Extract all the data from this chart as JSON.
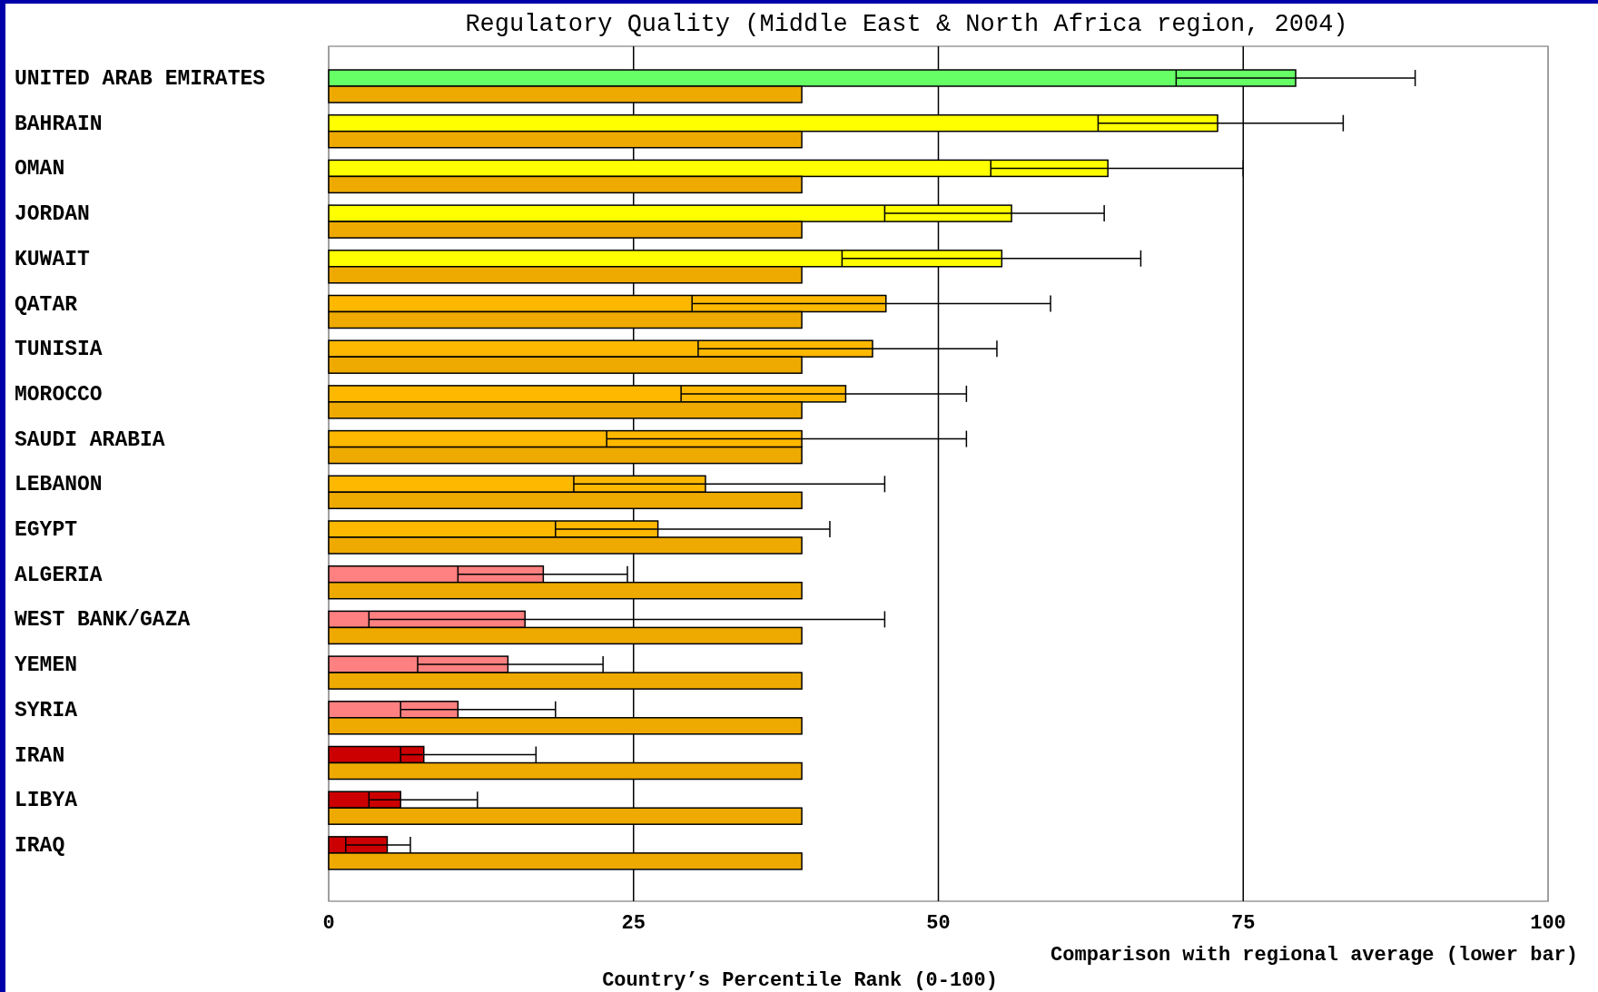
{
  "chart_data": {
    "type": "bar",
    "orientation": "horizontal",
    "title": "Regulatory Quality (Middle East & North Africa region, 2004)",
    "xlabel": "Country’s Percentile Rank (0-100)",
    "annotations": [
      "Comparison with regional average (lower bar)"
    ],
    "categories": [
      "UNITED ARAB EMIRATES",
      "BAHRAIN",
      "OMAN",
      "JORDAN",
      "KUWAIT",
      "QATAR",
      "TUNISIA",
      "MOROCCO",
      "SAUDI ARABIA",
      "LEBANON",
      "EGYPT",
      "ALGERIA",
      "WEST BANK/GAZA",
      "YEMEN",
      "SYRIA",
      "IRAN",
      "LIBYA",
      "IRAQ"
    ],
    "series": [
      {
        "values": [
          79.3,
          72.9,
          63.9,
          56.0,
          55.2,
          45.7,
          44.6,
          42.4,
          38.8,
          30.9,
          27.0,
          17.6,
          16.1,
          14.7,
          10.6,
          7.8,
          5.9,
          4.8
        ],
        "colors": [
          "#66ff66",
          "#ffff00",
          "#ffff00",
          "#ffff00",
          "#ffff00",
          "#ffb800",
          "#ffb800",
          "#ffb800",
          "#ffb800",
          "#ffb800",
          "#ffb800",
          "#ff8080",
          "#ff8080",
          "#ff8080",
          "#ff8080",
          "#cc0000",
          "#cc0000",
          "#cc0000"
        ],
        "errors": [
          [
            69.5,
            89.1
          ],
          [
            63.1,
            83.2
          ],
          [
            54.3,
            75.0
          ],
          [
            45.6,
            63.6
          ],
          [
            42.1,
            66.6
          ],
          [
            29.8,
            59.2
          ],
          [
            30.3,
            54.8
          ],
          [
            28.9,
            52.3
          ],
          [
            22.8,
            52.3
          ],
          [
            20.1,
            45.6
          ],
          [
            18.6,
            41.1
          ],
          [
            10.6,
            24.5
          ],
          [
            3.3,
            45.6
          ],
          [
            7.3,
            22.5
          ],
          [
            5.9,
            18.6
          ],
          [
            5.9,
            17.0
          ],
          [
            3.3,
            12.2
          ],
          [
            1.4,
            6.7
          ]
        ]
      },
      {
        "color": "#eeaa00",
        "values": [
          38.8,
          38.8,
          38.8,
          38.8,
          38.8,
          38.8,
          38.8,
          38.8,
          38.8,
          38.8,
          38.8,
          38.8,
          38.8,
          38.8,
          38.8,
          38.8,
          38.8,
          38.8
        ]
      }
    ],
    "xlim": [
      0,
      100
    ],
    "xticks": [
      0,
      25,
      50,
      75,
      100
    ],
    "grid": "x"
  }
}
